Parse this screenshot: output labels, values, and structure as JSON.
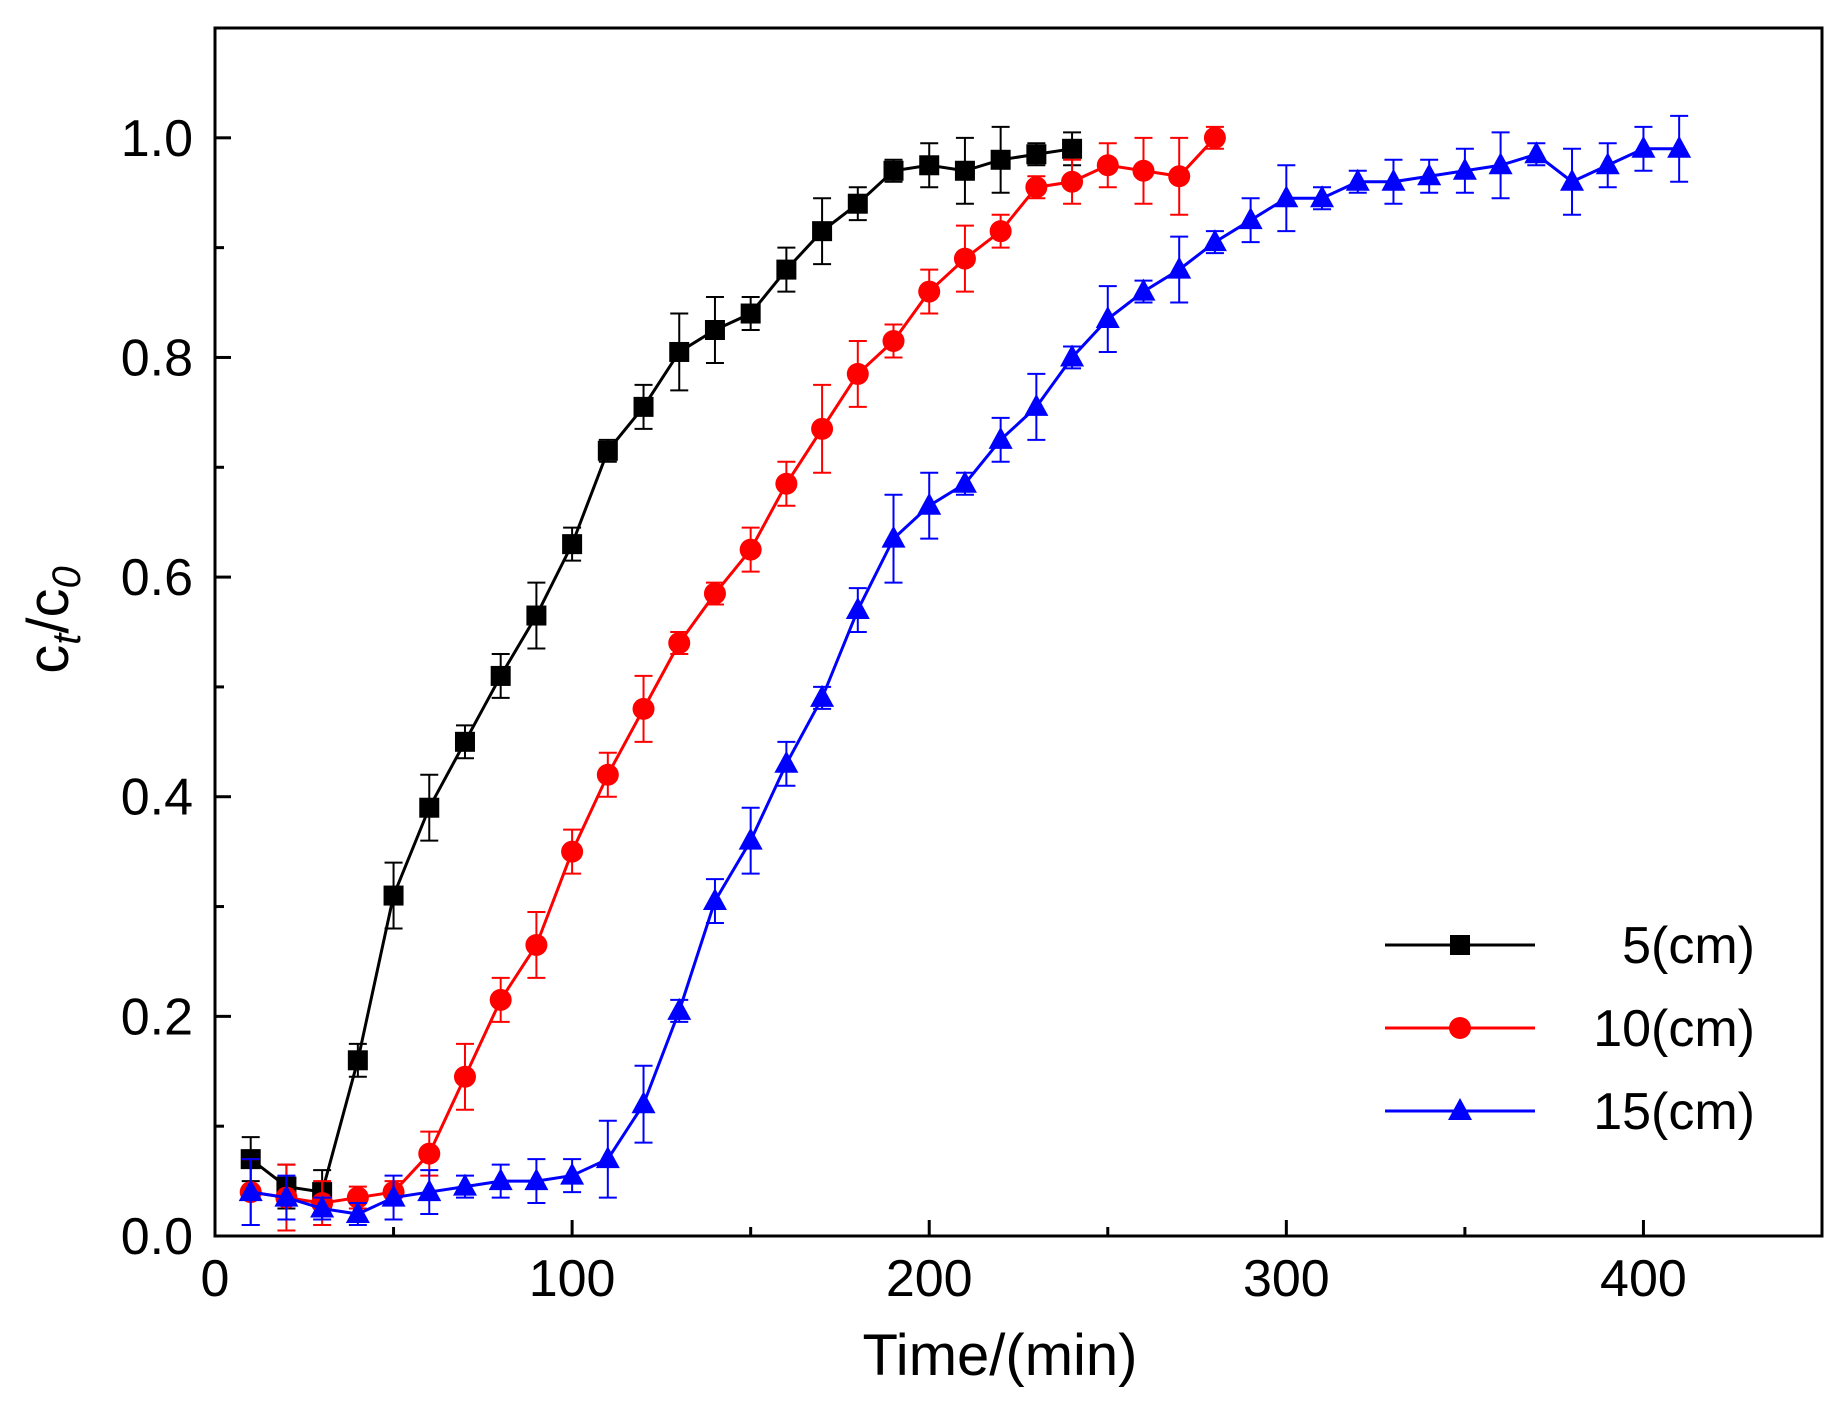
{
  "chart_data": {
    "type": "line",
    "title": "",
    "xlabel": "Time/(min)",
    "ylabel": {
      "c": "c",
      "t": "t",
      "slash": "/",
      "c0": "c",
      "zero": "0"
    },
    "xlim": [
      0,
      450
    ],
    "ylim": [
      0,
      1.1
    ],
    "xticks": [
      0,
      100,
      200,
      300,
      400
    ],
    "xtick_labels": [
      "0",
      "100",
      "200",
      "300",
      "400"
    ],
    "yticks": [
      0.0,
      0.2,
      0.4,
      0.6,
      0.8,
      1.0
    ],
    "ytick_labels": [
      "0.0",
      "0.2",
      "0.4",
      "0.6",
      "0.8",
      "1.0"
    ],
    "grid": false,
    "legend_position": "bottom-right",
    "series": [
      {
        "name": "5(cm)",
        "color": "#000000",
        "marker": "square",
        "x": [
          10,
          20,
          30,
          40,
          50,
          60,
          70,
          80,
          90,
          100,
          110,
          120,
          130,
          140,
          150,
          160,
          170,
          180,
          190,
          200,
          210,
          220,
          230,
          240
        ],
        "y": [
          0.07,
          0.045,
          0.04,
          0.16,
          0.31,
          0.39,
          0.45,
          0.51,
          0.565,
          0.63,
          0.715,
          0.755,
          0.805,
          0.825,
          0.84,
          0.88,
          0.915,
          0.94,
          0.97,
          0.975,
          0.97,
          0.98,
          0.985,
          0.99
        ],
        "err": [
          0.02,
          0.02,
          0.02,
          0.015,
          0.03,
          0.03,
          0.015,
          0.02,
          0.03,
          0.015,
          0.01,
          0.02,
          0.035,
          0.03,
          0.015,
          0.02,
          0.03,
          0.015,
          0.01,
          0.02,
          0.03,
          0.03,
          0.01,
          0.015
        ]
      },
      {
        "name": "10(cm)",
        "color": "#ff0000",
        "marker": "circle",
        "x": [
          10,
          20,
          30,
          40,
          50,
          60,
          70,
          80,
          90,
          100,
          110,
          120,
          130,
          140,
          150,
          160,
          170,
          180,
          190,
          200,
          210,
          220,
          230,
          240,
          250,
          260,
          270,
          280
        ],
        "y": [
          0.04,
          0.035,
          0.03,
          0.035,
          0.04,
          0.075,
          0.145,
          0.215,
          0.265,
          0.35,
          0.42,
          0.48,
          0.54,
          0.585,
          0.625,
          0.685,
          0.735,
          0.785,
          0.815,
          0.86,
          0.89,
          0.915,
          0.955,
          0.96,
          0.975,
          0.97,
          0.965,
          1.0
        ],
        "err": [
          0.03,
          0.03,
          0.02,
          0.01,
          0.01,
          0.02,
          0.03,
          0.02,
          0.03,
          0.02,
          0.02,
          0.03,
          0.01,
          0.01,
          0.02,
          0.02,
          0.04,
          0.03,
          0.015,
          0.02,
          0.03,
          0.015,
          0.01,
          0.02,
          0.02,
          0.03,
          0.035,
          0.01
        ]
      },
      {
        "name": "15(cm)",
        "color": "#0000ff",
        "marker": "triangle",
        "x": [
          10,
          20,
          30,
          40,
          50,
          60,
          70,
          80,
          90,
          100,
          110,
          120,
          130,
          140,
          150,
          160,
          170,
          180,
          190,
          200,
          210,
          220,
          230,
          240,
          250,
          260,
          270,
          280,
          290,
          300,
          310,
          320,
          330,
          340,
          350,
          360,
          370,
          380,
          390,
          400,
          410
        ],
        "y": [
          0.04,
          0.035,
          0.025,
          0.02,
          0.035,
          0.04,
          0.045,
          0.05,
          0.05,
          0.055,
          0.07,
          0.12,
          0.205,
          0.305,
          0.36,
          0.43,
          0.49,
          0.57,
          0.635,
          0.665,
          0.685,
          0.725,
          0.755,
          0.8,
          0.835,
          0.86,
          0.88,
          0.905,
          0.925,
          0.945,
          0.945,
          0.96,
          0.96,
          0.965,
          0.97,
          0.975,
          0.985,
          0.96,
          0.975,
          0.99,
          0.99
        ],
        "err": [
          0.03,
          0.02,
          0.01,
          0.01,
          0.02,
          0.02,
          0.01,
          0.015,
          0.02,
          0.015,
          0.035,
          0.035,
          0.01,
          0.02,
          0.03,
          0.02,
          0.01,
          0.02,
          0.04,
          0.03,
          0.01,
          0.02,
          0.03,
          0.01,
          0.03,
          0.01,
          0.03,
          0.01,
          0.02,
          0.03,
          0.01,
          0.01,
          0.02,
          0.015,
          0.02,
          0.03,
          0.01,
          0.03,
          0.02,
          0.02,
          0.03
        ]
      }
    ]
  }
}
